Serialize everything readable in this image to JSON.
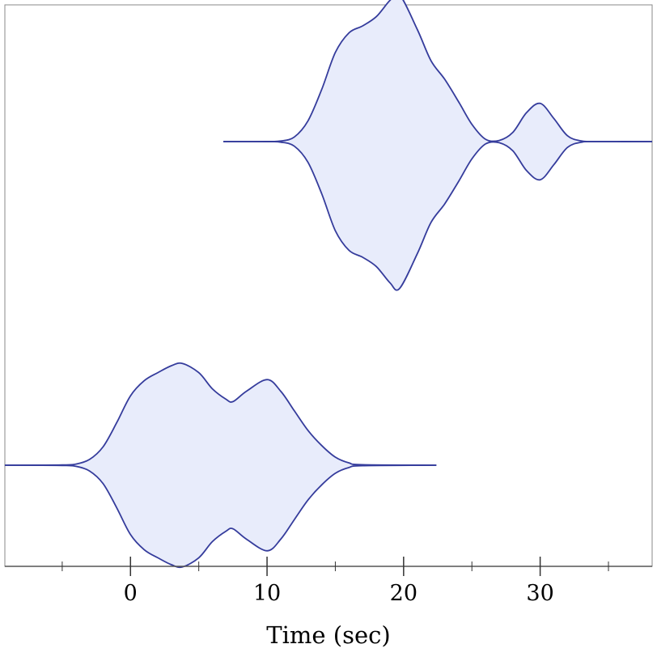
{
  "chart_data": {
    "type": "violin",
    "orientation": "horizontal",
    "xlabel": "Time (sec)",
    "xlim": [
      -9.2,
      38.2
    ],
    "x_major_ticks": [
      0,
      10,
      20,
      30
    ],
    "x_tick_labels": [
      "0",
      "10",
      "20",
      "30"
    ],
    "x_minor_ticks": [
      -5,
      5,
      15,
      25,
      35
    ],
    "grid": false,
    "colors": {
      "fill": "#e8ecfb",
      "stroke": "#353c9c",
      "axis": "#555555"
    },
    "series": [
      {
        "baseline": 0,
        "range": [
          -9.2,
          22.4
        ],
        "density": [
          [
            -9.2,
            0
          ],
          [
            -5,
            0.002
          ],
          [
            -4,
            0.01
          ],
          [
            -3,
            0.05
          ],
          [
            -2,
            0.16
          ],
          [
            -1,
            0.37
          ],
          [
            0,
            0.6
          ],
          [
            1,
            0.73
          ],
          [
            2,
            0.8
          ],
          [
            3,
            0.86
          ],
          [
            3.8,
            0.88
          ],
          [
            5,
            0.8
          ],
          [
            6,
            0.66
          ],
          [
            7,
            0.57
          ],
          [
            7.5,
            0.55
          ],
          [
            8.5,
            0.64
          ],
          [
            10,
            0.74
          ],
          [
            11,
            0.64
          ],
          [
            12,
            0.47
          ],
          [
            13,
            0.3
          ],
          [
            14,
            0.17
          ],
          [
            15,
            0.07
          ],
          [
            16,
            0.02
          ],
          [
            17,
            0.004
          ],
          [
            22.4,
            0
          ]
        ]
      },
      {
        "baseline": 1,
        "range": [
          6.8,
          38.2
        ],
        "density": [
          [
            6.8,
            0
          ],
          [
            10,
            0.001
          ],
          [
            11,
            0.005
          ],
          [
            12,
            0.04
          ],
          [
            13,
            0.18
          ],
          [
            14,
            0.45
          ],
          [
            15,
            0.77
          ],
          [
            16,
            0.94
          ],
          [
            17,
            1.0
          ],
          [
            18,
            1.08
          ],
          [
            19,
            1.22
          ],
          [
            19.7,
            1.27
          ],
          [
            21,
            0.97
          ],
          [
            22,
            0.7
          ],
          [
            23,
            0.54
          ],
          [
            24,
            0.35
          ],
          [
            25,
            0.15
          ],
          [
            26,
            0.02
          ],
          [
            27,
            0.01
          ],
          [
            28,
            0.08
          ],
          [
            29,
            0.25
          ],
          [
            30,
            0.33
          ],
          [
            31,
            0.2
          ],
          [
            32,
            0.05
          ],
          [
            33,
            0.006
          ],
          [
            34,
            0
          ],
          [
            38.2,
            0
          ]
        ]
      }
    ]
  }
}
